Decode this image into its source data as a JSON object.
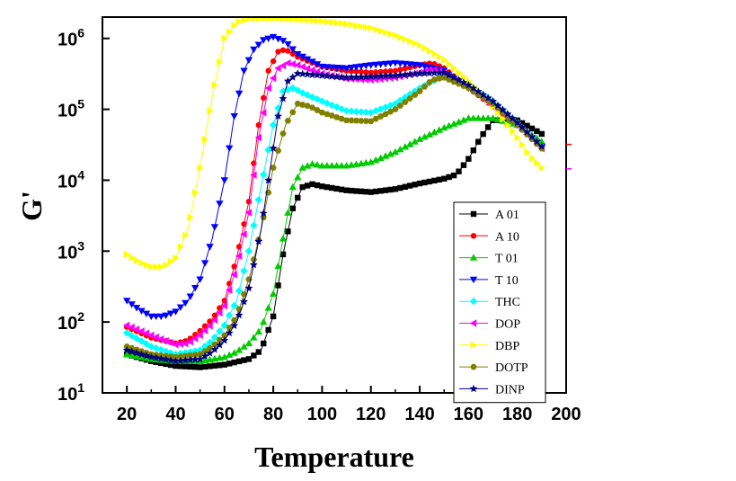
{
  "chart_data": {
    "type": "line",
    "title": "",
    "xlabel": "Temperature",
    "ylabel": "G'",
    "xlim": [
      10,
      200
    ],
    "ylim": [
      10,
      2000000
    ],
    "yscale": "log",
    "x_ticks": [
      20,
      40,
      60,
      80,
      100,
      120,
      140,
      160,
      180,
      200
    ],
    "y_ticks": [
      {
        "value": 10,
        "base": "10",
        "exp": "1"
      },
      {
        "value": 100,
        "base": "10",
        "exp": "2"
      },
      {
        "value": 1000,
        "base": "10",
        "exp": "3"
      },
      {
        "value": 10000,
        "base": "10",
        "exp": "4"
      },
      {
        "value": 100000,
        "base": "10",
        "exp": "5"
      },
      {
        "value": 1000000,
        "base": "10",
        "exp": "6"
      }
    ],
    "grid": false,
    "legend_position": "bottom-right",
    "series": [
      {
        "name": "A 01",
        "color": "#000000",
        "marker": "square",
        "points": [
          [
            20,
            35
          ],
          [
            30,
            28
          ],
          [
            40,
            24
          ],
          [
            50,
            23
          ],
          [
            60,
            25
          ],
          [
            70,
            30
          ],
          [
            75,
            40
          ],
          [
            80,
            120
          ],
          [
            84,
            900
          ],
          [
            88,
            4000
          ],
          [
            92,
            8000
          ],
          [
            96,
            8800
          ],
          [
            100,
            8200
          ],
          [
            110,
            7200
          ],
          [
            120,
            6800
          ],
          [
            130,
            7500
          ],
          [
            140,
            9000
          ],
          [
            150,
            10500
          ],
          [
            155,
            12000
          ],
          [
            160,
            20000
          ],
          [
            165,
            40000
          ],
          [
            170,
            70000
          ],
          [
            180,
            70000
          ],
          [
            190,
            45000
          ]
        ]
      },
      {
        "name": "A 10",
        "color": "#ff0000",
        "marker": "circle",
        "points": [
          [
            20,
            85
          ],
          [
            30,
            60
          ],
          [
            40,
            50
          ],
          [
            45,
            55
          ],
          [
            50,
            75
          ],
          [
            55,
            110
          ],
          [
            60,
            200
          ],
          [
            65,
            800
          ],
          [
            70,
            5000
          ],
          [
            74,
            60000
          ],
          [
            78,
            350000
          ],
          [
            82,
            650000
          ],
          [
            85,
            700000
          ],
          [
            90,
            550000
          ],
          [
            100,
            400000
          ],
          [
            110,
            350000
          ],
          [
            120,
            330000
          ],
          [
            130,
            350000
          ],
          [
            140,
            420000
          ],
          [
            145,
            450000
          ],
          [
            150,
            380000
          ],
          [
            160,
            200000
          ],
          [
            170,
            110000
          ],
          [
            180,
            60000
          ],
          [
            190,
            30000
          ]
        ]
      },
      {
        "name": "T 01",
        "color": "#00cc00",
        "marker": "triangle-up",
        "points": [
          [
            20,
            35
          ],
          [
            30,
            30
          ],
          [
            40,
            28
          ],
          [
            50,
            28
          ],
          [
            60,
            32
          ],
          [
            65,
            38
          ],
          [
            70,
            50
          ],
          [
            75,
            80
          ],
          [
            80,
            250
          ],
          [
            84,
            1500
          ],
          [
            88,
            8000
          ],
          [
            92,
            15000
          ],
          [
            96,
            17000
          ],
          [
            100,
            16000
          ],
          [
            110,
            16000
          ],
          [
            120,
            18000
          ],
          [
            130,
            25000
          ],
          [
            140,
            38000
          ],
          [
            150,
            55000
          ],
          [
            160,
            75000
          ],
          [
            170,
            75000
          ],
          [
            180,
            60000
          ],
          [
            190,
            35000
          ]
        ]
      },
      {
        "name": "T 10",
        "color": "#0000ff",
        "marker": "triangle-down",
        "points": [
          [
            20,
            200
          ],
          [
            25,
            150
          ],
          [
            30,
            120
          ],
          [
            35,
            120
          ],
          [
            40,
            140
          ],
          [
            45,
            200
          ],
          [
            50,
            400
          ],
          [
            55,
            1500
          ],
          [
            60,
            10000
          ],
          [
            64,
            80000
          ],
          [
            68,
            350000
          ],
          [
            72,
            700000
          ],
          [
            76,
            950000
          ],
          [
            80,
            1050000
          ],
          [
            85,
            900000
          ],
          [
            90,
            600000
          ],
          [
            100,
            400000
          ],
          [
            110,
            380000
          ],
          [
            120,
            420000
          ],
          [
            130,
            450000
          ],
          [
            140,
            420000
          ],
          [
            150,
            350000
          ],
          [
            160,
            200000
          ],
          [
            170,
            120000
          ],
          [
            180,
            60000
          ],
          [
            190,
            30000
          ]
        ]
      },
      {
        "name": "THC",
        "color": "#00ffff",
        "marker": "diamond",
        "points": [
          [
            20,
            70
          ],
          [
            30,
            45
          ],
          [
            40,
            35
          ],
          [
            50,
            40
          ],
          [
            55,
            55
          ],
          [
            60,
            90
          ],
          [
            65,
            200
          ],
          [
            70,
            1000
          ],
          [
            75,
            8000
          ],
          [
            80,
            60000
          ],
          [
            84,
            180000
          ],
          [
            88,
            200000
          ],
          [
            92,
            170000
          ],
          [
            100,
            130000
          ],
          [
            110,
            95000
          ],
          [
            120,
            90000
          ],
          [
            130,
            120000
          ],
          [
            140,
            200000
          ],
          [
            150,
            300000
          ],
          [
            160,
            220000
          ],
          [
            170,
            130000
          ],
          [
            180,
            65000
          ],
          [
            190,
            30000
          ]
        ]
      },
      {
        "name": "DOP",
        "color": "#ff00ff",
        "marker": "triangle-left",
        "points": [
          [
            20,
            90
          ],
          [
            30,
            65
          ],
          [
            40,
            48
          ],
          [
            45,
            50
          ],
          [
            50,
            65
          ],
          [
            55,
            95
          ],
          [
            60,
            170
          ],
          [
            65,
            600
          ],
          [
            70,
            3500
          ],
          [
            74,
            40000
          ],
          [
            78,
            200000
          ],
          [
            82,
            380000
          ],
          [
            86,
            450000
          ],
          [
            90,
            420000
          ],
          [
            100,
            320000
          ],
          [
            110,
            270000
          ],
          [
            120,
            260000
          ],
          [
            130,
            280000
          ],
          [
            140,
            330000
          ],
          [
            145,
            370000
          ],
          [
            150,
            330000
          ],
          [
            160,
            200000
          ],
          [
            170,
            110000
          ],
          [
            180,
            60000
          ],
          [
            190,
            28000
          ]
        ]
      },
      {
        "name": "DBP",
        "color": "#ffff00",
        "marker": "triangle-right",
        "points": [
          [
            20,
            900
          ],
          [
            25,
            700
          ],
          [
            30,
            600
          ],
          [
            35,
            600
          ],
          [
            40,
            800
          ],
          [
            45,
            2000
          ],
          [
            50,
            15000
          ],
          [
            55,
            150000
          ],
          [
            60,
            1000000
          ],
          [
            65,
            1700000
          ],
          [
            70,
            1900000
          ],
          [
            80,
            1900000
          ],
          [
            90,
            1850000
          ],
          [
            100,
            1750000
          ],
          [
            110,
            1600000
          ],
          [
            120,
            1400000
          ],
          [
            130,
            1100000
          ],
          [
            140,
            800000
          ],
          [
            150,
            500000
          ],
          [
            160,
            250000
          ],
          [
            170,
            110000
          ],
          [
            180,
            40000
          ],
          [
            185,
            22000
          ],
          [
            190,
            15000
          ]
        ]
      },
      {
        "name": "DOTP",
        "color": "#808000",
        "marker": "hexagon",
        "points": [
          [
            20,
            45
          ],
          [
            30,
            35
          ],
          [
            40,
            32
          ],
          [
            50,
            35
          ],
          [
            55,
            45
          ],
          [
            60,
            65
          ],
          [
            65,
            120
          ],
          [
            70,
            400
          ],
          [
            75,
            2000
          ],
          [
            80,
            15000
          ],
          [
            85,
            60000
          ],
          [
            90,
            120000
          ],
          [
            95,
            110000
          ],
          [
            100,
            90000
          ],
          [
            110,
            70000
          ],
          [
            120,
            68000
          ],
          [
            130,
            100000
          ],
          [
            140,
            180000
          ],
          [
            145,
            260000
          ],
          [
            150,
            280000
          ],
          [
            160,
            200000
          ],
          [
            170,
            120000
          ],
          [
            180,
            60000
          ],
          [
            190,
            28000
          ]
        ]
      },
      {
        "name": "DINP",
        "color": "#000080",
        "marker": "star",
        "points": [
          [
            20,
            40
          ],
          [
            30,
            32
          ],
          [
            40,
            28
          ],
          [
            50,
            30
          ],
          [
            55,
            38
          ],
          [
            60,
            55
          ],
          [
            65,
            100
          ],
          [
            70,
            300
          ],
          [
            75,
            2000
          ],
          [
            78,
            10000
          ],
          [
            82,
            80000
          ],
          [
            86,
            250000
          ],
          [
            90,
            320000
          ],
          [
            100,
            300000
          ],
          [
            110,
            280000
          ],
          [
            120,
            290000
          ],
          [
            130,
            300000
          ],
          [
            140,
            320000
          ],
          [
            150,
            330000
          ],
          [
            160,
            220000
          ],
          [
            170,
            130000
          ],
          [
            180,
            65000
          ],
          [
            190,
            30000
          ]
        ]
      }
    ]
  }
}
